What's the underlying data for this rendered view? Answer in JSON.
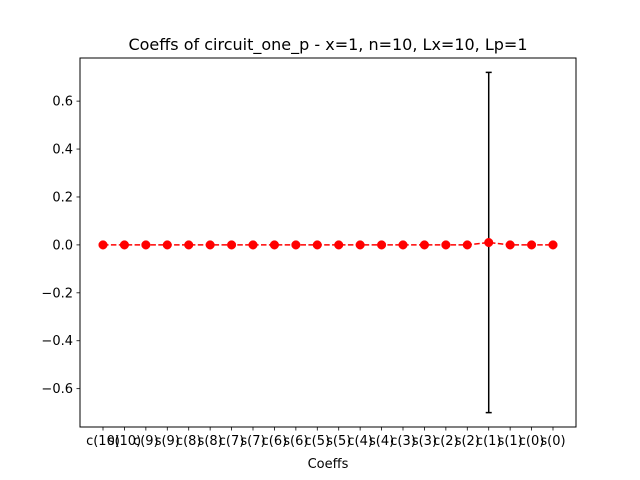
{
  "chart_data": {
    "type": "line",
    "title": "Coeffs of circuit_one_p - x=1, n=10, Lx=10, Lp=1",
    "xlabel": "Coeffs",
    "ylabel": "",
    "categories": [
      "c(10)",
      "s(10)",
      "c(9)",
      "s(9)",
      "c(8)",
      "s(8)",
      "c(7)",
      "s(7)",
      "c(6)",
      "s(6)",
      "c(5)",
      "s(5)",
      "c(4)",
      "s(4)",
      "c(3)",
      "s(3)",
      "c(2)",
      "s(2)",
      "c(1)",
      "s(1)",
      "c(0)",
      "s(0)"
    ],
    "series": [
      {
        "values": [
          0,
          0,
          0,
          0,
          0,
          0,
          0,
          0,
          0,
          0,
          0,
          0,
          0,
          0,
          0,
          0,
          0,
          0,
          0.01,
          0,
          0,
          0
        ],
        "errors": [
          0,
          0,
          0,
          0,
          0,
          0,
          0,
          0,
          0,
          0,
          0,
          0,
          0,
          0,
          0,
          0,
          0,
          0,
          0.71,
          0,
          0,
          0
        ],
        "color": "#ff0000",
        "linestyle": "dashed",
        "marker": "circle"
      }
    ],
    "errorbar_color": "#000000",
    "ylim": [
      -0.76,
      0.78
    ],
    "yticks": [
      -0.6,
      -0.4,
      -0.2,
      0.0,
      0.2,
      0.4,
      0.6
    ],
    "ytick_labels": [
      "−0.6",
      "−0.4",
      "−0.2",
      "0.0",
      "0.2",
      "0.4",
      "0.6"
    ],
    "grid": false,
    "legend": "none"
  }
}
